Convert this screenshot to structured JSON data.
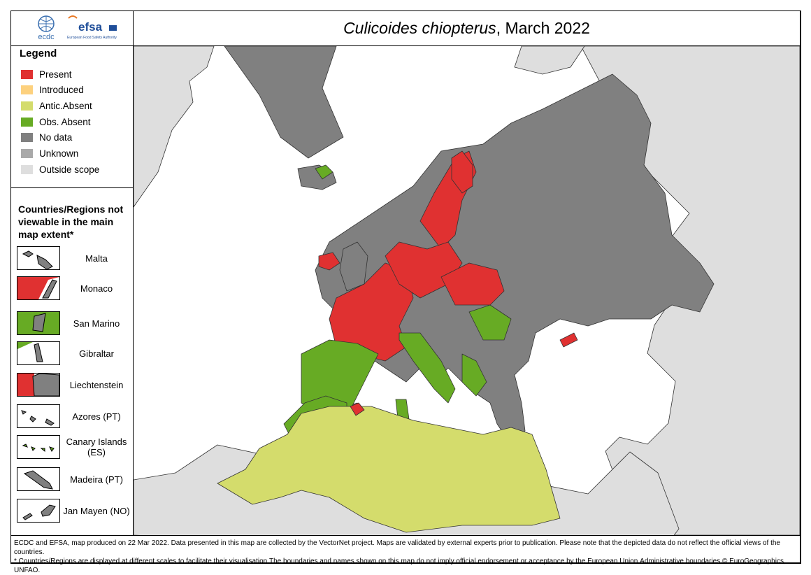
{
  "header": {
    "title_species": "Culicoides chiopterus",
    "title_rest": ", March 2022",
    "logo_ecdc": "ecdc",
    "logo_efsa": "efsa",
    "logo_efsa_sub": "European Food Safety Authority"
  },
  "legend": {
    "title": "Legend",
    "items": [
      {
        "label": "Present",
        "color": "#e03131"
      },
      {
        "label": "Introduced",
        "color": "#fdd17e"
      },
      {
        "label": "Antic.Absent",
        "color": "#d4dc6c"
      },
      {
        "label": "Obs. Absent",
        "color": "#67ab24"
      },
      {
        "label": "No data",
        "color": "#808080"
      },
      {
        "label": "Unknown",
        "color": "#a9a9a9"
      },
      {
        "label": "Outside scope",
        "color": "#dedede"
      }
    ]
  },
  "insets": {
    "title": "Countries/Regions not viewable in the main map extent*",
    "items": [
      "Malta",
      "Monaco",
      "San Marino",
      "Gibraltar",
      "Liechtenstein",
      "Azores (PT)",
      "Canary Islands (ES)",
      "Madeira (PT)",
      "Jan Mayen (NO)"
    ]
  },
  "footer": {
    "line1": "ECDC and EFSA, map produced on 22 Mar 2022. Data presented in this map are collected by the VectorNet project. Maps are validated by external experts prior to publication. Please note that the depicted data do not reflect the official views of the countries.",
    "line2": "* Countries/Regions are displayed at different scales to facilitate their visualisation.The boundaries and names shown on this map do not imply official endorsement or acceptance by the European Union.Administrative boundaries © EuroGeographics, UNFAO."
  }
}
